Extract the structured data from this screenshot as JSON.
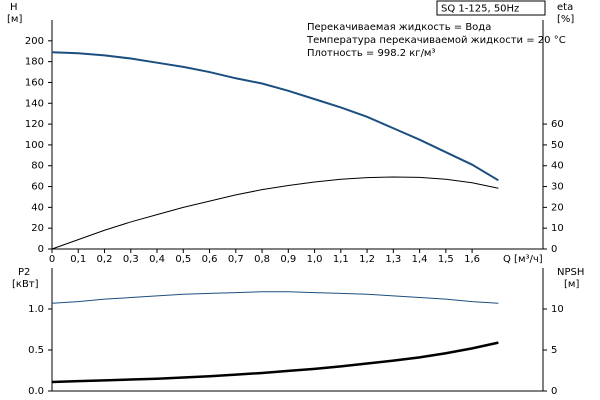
{
  "chart_data": [
    {
      "type": "line",
      "label_box": "SQ 1-125, 50Hz",
      "annotations": [
        "Перекачиваемая жидкость = Вода",
        "Температура перекачиваемой жидкости = 20 °C",
        "Плотность = 998.2 кг/м³"
      ],
      "ylabel": "H",
      "yunit": "[м]",
      "y2label": "eta",
      "y2unit": "[%]",
      "xlabel": "Q [м³/ч]",
      "x": [
        0,
        0.1,
        0.2,
        0.3,
        0.4,
        0.5,
        0.6,
        0.7,
        0.8,
        0.9,
        1.0,
        1.1,
        1.2,
        1.3,
        1.4,
        1.5,
        1.6,
        1.7
      ],
      "xlim": [
        0,
        1.87
      ],
      "xticks": [
        0,
        {
          "value": 0.1,
          "label": "0,1"
        },
        {
          "value": 0.2,
          "label": "0,2"
        },
        {
          "value": 0.3,
          "label": "0,3"
        },
        {
          "value": 0.4,
          "label": "0,4"
        },
        {
          "value": 0.5,
          "label": "0,5"
        },
        {
          "value": 0.6,
          "label": "0,6"
        },
        {
          "value": 0.7,
          "label": "0,7"
        },
        {
          "value": 0.8,
          "label": "0,8"
        },
        {
          "value": 0.9,
          "label": "0,9"
        },
        {
          "value": 1.0,
          "label": "1,0"
        },
        {
          "value": 1.1,
          "label": "1,1"
        },
        {
          "value": 1.2,
          "label": "1,2"
        },
        {
          "value": 1.3,
          "label": "1,3"
        },
        {
          "value": 1.4,
          "label": "1,4"
        },
        {
          "value": 1.5,
          "label": "1,5"
        },
        {
          "value": 1.6,
          "label": "1,6"
        }
      ],
      "ylim": [
        0,
        220
      ],
      "yticks": [
        0,
        20,
        40,
        60,
        80,
        100,
        120,
        140,
        160,
        180,
        200
      ],
      "y2lim": [
        0,
        110
      ],
      "y2ticks": [
        0,
        10,
        20,
        30,
        40,
        50,
        60
      ],
      "series": [
        {
          "color": "#1c4f80",
          "line_width": 2,
          "values": [
            189,
            188,
            186,
            183,
            179,
            175,
            170,
            164,
            159,
            152,
            144,
            136,
            127,
            116,
            105,
            93,
            81,
            66
          ]
        },
        {
          "color": "#000000",
          "line_width": 1,
          "axis": "y2",
          "values": [
            0,
            4.5,
            9,
            13,
            16.5,
            20,
            23,
            26,
            28.5,
            30.5,
            32.2,
            33.5,
            34.3,
            34.6,
            34.4,
            33.5,
            31.8,
            29.2
          ]
        }
      ]
    },
    {
      "type": "line",
      "ylabel": "P2",
      "yunit": "[кВт]",
      "y2label": "NPSH",
      "y2unit": "[м]",
      "x": [
        0,
        0.1,
        0.2,
        0.3,
        0.4,
        0.5,
        0.6,
        0.7,
        0.8,
        0.9,
        1.0,
        1.1,
        1.2,
        1.3,
        1.4,
        1.5,
        1.6,
        1.7
      ],
      "xlim": [
        0,
        1.87
      ],
      "ylim": [
        0,
        1.5
      ],
      "yticks": [
        {
          "value": 0,
          "label": "0.0"
        },
        0.5,
        {
          "value": 1,
          "label": "1.0"
        }
      ],
      "y2lim": [
        0,
        15
      ],
      "y2ticks": [
        0,
        5,
        10
      ],
      "series": [
        {
          "color": "#1c4f80",
          "line_width": 1,
          "values": [
            1.07,
            1.09,
            1.12,
            1.14,
            1.16,
            1.18,
            1.19,
            1.2,
            1.21,
            1.21,
            1.2,
            1.19,
            1.18,
            1.16,
            1.14,
            1.12,
            1.09,
            1.07
          ]
        },
        {
          "color": "#000000",
          "line_width": 2.5,
          "axis": "y2",
          "values": [
            1.1,
            1.2,
            1.3,
            1.4,
            1.5,
            1.65,
            1.8,
            2.0,
            2.2,
            2.45,
            2.7,
            3.0,
            3.35,
            3.7,
            4.1,
            4.6,
            5.2,
            5.9
          ]
        }
      ]
    }
  ]
}
